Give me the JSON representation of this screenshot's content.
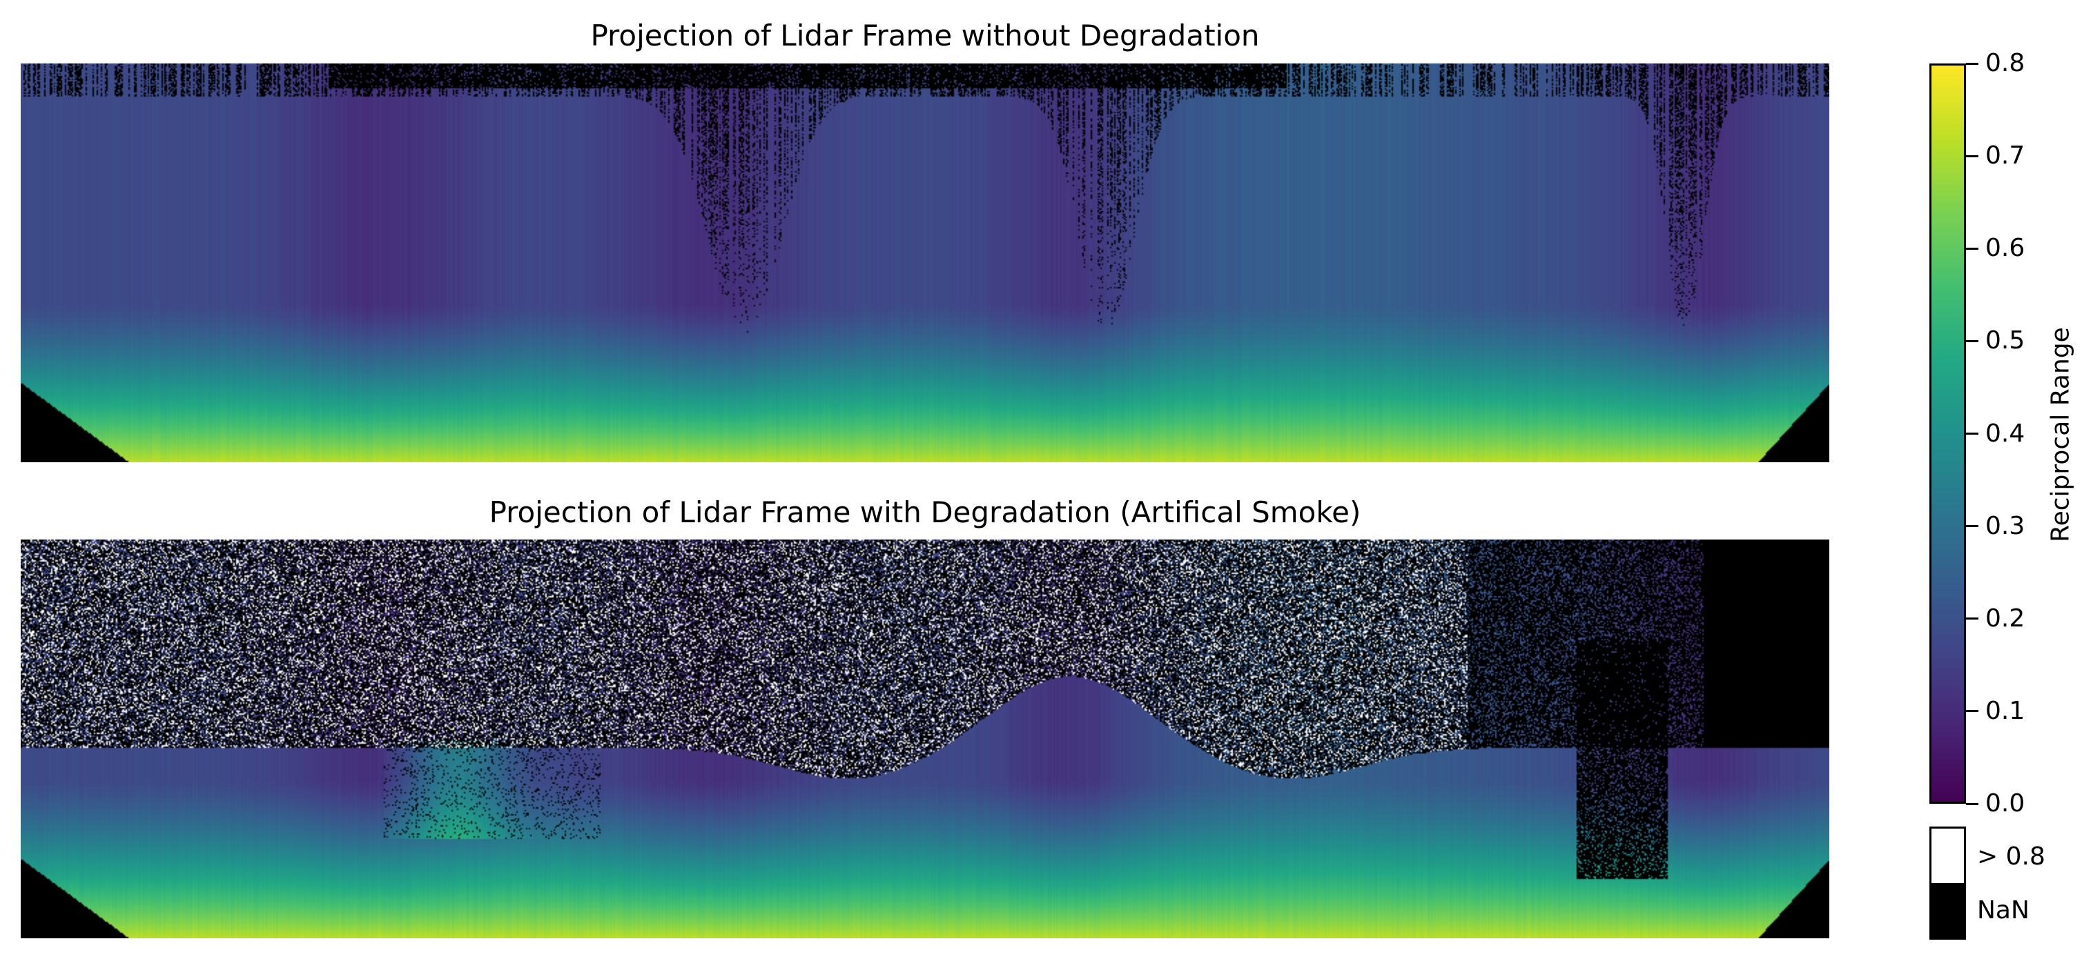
{
  "chart_data": [
    {
      "type": "heatmap",
      "title": "Projection of Lidar Frame without Degradation",
      "colormap": "viridis",
      "vmin": 0.0,
      "vmax": 0.8,
      "axes_visible": false
    },
    {
      "type": "heatmap",
      "title": "Projection of Lidar Frame with Degradation (Artifical Smoke)",
      "colormap": "viridis",
      "vmin": 0.0,
      "vmax": 0.8,
      "axes_visible": false
    }
  ],
  "colorbar": {
    "label": "Reciprocal Range",
    "ticks": [
      "0.0",
      "0.1",
      "0.2",
      "0.3",
      "0.4",
      "0.5",
      "0.6",
      "0.7",
      "0.8"
    ],
    "range": [
      0.0,
      0.8
    ],
    "extensions": [
      {
        "label": "> 0.8",
        "color": "#ffffff"
      },
      {
        "label": "NaN",
        "color": "#000000"
      }
    ]
  }
}
